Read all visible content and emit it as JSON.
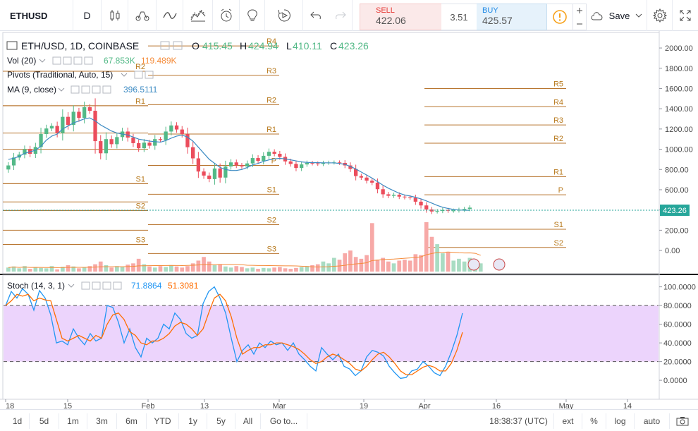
{
  "toolbar": {
    "symbol": "ETHUSD",
    "interval": "D",
    "sell_label": "SELL",
    "sell_price": "422.06",
    "spread": "3.51",
    "buy_label": "BUY",
    "buy_price": "425.57",
    "save_label": "Save",
    "icons": [
      "chevron-down-icon",
      "candles-icon",
      "compare-icon",
      "indicators-icon",
      "templates-icon",
      "alert-icon",
      "idea-icon",
      "replay-icon",
      "undo-icon",
      "redo-icon",
      "info-icon",
      "plus-icon",
      "minus-icon",
      "cloud-icon",
      "gear-icon",
      "fullscreen-icon"
    ]
  },
  "legend": {
    "title": "ETH/USD, 1D, COINBASE",
    "o_label": "O",
    "o_value": "415.45",
    "h_label": "H",
    "h_value": "424.94",
    "l_label": "L",
    "l_value": "410.11",
    "c_label": "C",
    "c_value": "423.26",
    "vol_label": "Vol (20)",
    "vol_value_1": "67.853K",
    "vol_value_2": "119.489K",
    "pivots_label": "Pivots (Traditional, Auto, 15)",
    "ma_label": "MA (9, close)",
    "ma_value": "396.5111",
    "stoch_label": "Stoch (14, 3, 1)",
    "stoch_k": "71.8864",
    "stoch_d": "51.3081"
  },
  "colors": {
    "up": "#53b987",
    "down": "#eb4d5c",
    "up_vol": "#a9dcc3",
    "down_vol": "#f7a9a7",
    "ma": "#3d8bc3",
    "vol_ma": "#f58b39",
    "pivot": "#b8752f",
    "stoch_k": "#2196f3",
    "stoch_d": "#ff6d00",
    "stoch_band": "#e5c6fb",
    "last_price_bg": "#26a69a"
  },
  "bottom": {
    "ranges": [
      "1d",
      "5d",
      "1m",
      "3m",
      "6m",
      "YTD",
      "1y",
      "5y",
      "All"
    ],
    "goto": "Go to...",
    "time": "18:38:37 (UTC)",
    "ext": "ext",
    "pct": "%",
    "log": "log",
    "auto": "auto"
  },
  "chart_data": [
    {
      "type": "candlestick",
      "title": "ETH/USD, 1D, COINBASE",
      "ylim": [
        -90,
        2070
      ],
      "y_ticks": [
        "2000.00",
        "1800.00",
        "1600.00",
        "1400.00",
        "1200.00",
        "1000.00",
        "800.00",
        "600.00",
        "400.00",
        "200.00",
        "0.00"
      ],
      "x_ticks": [
        "18",
        "15",
        "Feb",
        "13",
        "Mar",
        "19",
        "Apr",
        "16",
        "May",
        "14"
      ],
      "last_price": "423.26",
      "candles_close": [
        840,
        918,
        947,
        1000,
        955,
        1022,
        1150,
        1205,
        1230,
        1160,
        1320,
        1240,
        1370,
        1310,
        1415,
        1380,
        1080,
        960,
        1100,
        1050,
        1120,
        1175,
        1115,
        1060,
        1010,
        1065,
        1035,
        1100,
        1090,
        1175,
        1235,
        1195,
        1150,
        1020,
        910,
        780,
        740,
        705,
        810,
        720,
        830,
        870,
        842,
        830,
        860,
        913,
        885,
        935,
        975,
        955,
        925,
        880,
        855,
        815,
        850,
        865,
        860,
        855,
        865,
        868,
        870,
        865,
        840,
        805,
        735,
        720,
        690,
        670,
        605,
        555,
        540,
        550,
        532,
        525,
        520,
        482,
        445,
        405,
        385,
        390,
        400,
        392,
        395,
        402,
        410,
        423.26
      ],
      "candles_up": [
        true,
        true,
        true,
        true,
        false,
        true,
        true,
        true,
        true,
        false,
        true,
        false,
        true,
        false,
        true,
        false,
        false,
        false,
        true,
        false,
        true,
        true,
        false,
        false,
        false,
        true,
        false,
        true,
        false,
        true,
        true,
        false,
        false,
        false,
        false,
        false,
        false,
        false,
        true,
        false,
        true,
        true,
        false,
        false,
        true,
        true,
        false,
        true,
        true,
        false,
        false,
        false,
        false,
        false,
        true,
        true,
        false,
        false,
        true,
        true,
        true,
        false,
        false,
        false,
        false,
        false,
        false,
        false,
        false,
        false,
        false,
        true,
        false,
        false,
        false,
        false,
        false,
        false,
        false,
        true,
        true,
        false,
        true,
        true,
        true,
        true
      ],
      "ma": [
        900,
        910,
        930,
        960,
        975,
        990,
        1030,
        1090,
        1130,
        1150,
        1200,
        1230,
        1260,
        1280,
        1300,
        1310,
        1280,
        1240,
        1210,
        1180,
        1160,
        1150,
        1140,
        1120,
        1100,
        1090,
        1080,
        1075,
        1070,
        1085,
        1110,
        1130,
        1140,
        1120,
        1080,
        1020,
        960,
        900,
        860,
        820,
        800,
        790,
        790,
        800,
        820,
        845,
        860,
        880,
        895,
        905,
        910,
        905,
        895,
        885,
        875,
        870,
        868,
        867,
        866,
        866,
        865,
        860,
        850,
        830,
        805,
        775,
        745,
        715,
        680,
        645,
        615,
        590,
        565,
        548,
        538,
        525,
        510,
        490,
        468,
        445,
        427,
        415,
        405,
        400,
        398,
        396.5111
      ],
      "pivots": [
        {
          "label": "R2",
          "value": 1770
        },
        {
          "label": "R1",
          "value": 1430
        },
        {
          "label": "S1",
          "value": 660
        },
        {
          "label": "S2",
          "value": 395
        },
        {
          "label": "S3",
          "value": 60
        },
        {
          "label": "R4",
          "value": 2020
        },
        {
          "label": "R3",
          "value": 1730
        },
        {
          "label": "R2",
          "value": 1440
        },
        {
          "label": "R1",
          "value": 1150
        },
        {
          "label": "P",
          "value": 840
        },
        {
          "label": "S1",
          "value": 555
        },
        {
          "label": "S2",
          "value": 255
        },
        {
          "label": "S3",
          "value": -30
        },
        {
          "label": "R5",
          "value": 1600
        },
        {
          "label": "R4",
          "value": 1420
        },
        {
          "label": "R3",
          "value": 1240
        },
        {
          "label": "R2",
          "value": 1060
        },
        {
          "label": "R1",
          "value": 730
        },
        {
          "label": "P",
          "value": 550
        },
        {
          "label": "S1",
          "value": 210
        },
        {
          "label": "S2",
          "value": 30
        }
      ]
    },
    {
      "type": "bar",
      "title": "Vol (20)",
      "values": [
        22,
        28,
        18,
        30,
        15,
        25,
        20,
        18,
        30,
        12,
        26,
        35,
        28,
        18,
        22,
        30,
        40,
        55,
        35,
        22,
        30,
        25,
        38,
        45,
        70,
        40,
        28,
        22,
        30,
        25,
        35,
        28,
        22,
        30,
        45,
        60,
        80,
        55,
        35,
        40,
        28,
        22,
        30,
        25,
        18,
        22,
        15,
        20,
        18,
        22,
        25,
        18,
        15,
        20,
        25,
        30,
        35,
        40,
        55,
        45,
        75,
        65,
        100,
        115,
        80,
        70,
        90,
        265,
        65,
        75,
        55,
        45,
        60,
        65,
        60,
        95,
        90,
        270,
        190,
        150,
        100,
        105,
        60,
        70,
        55,
        75,
        50,
        45
      ]
    },
    {
      "type": "line",
      "title": "Stoch (14, 3, 1)",
      "ylim": [
        -12,
        105
      ],
      "y_ticks": [
        "100.0000",
        "80.0000",
        "60.0000",
        "40.0000",
        "20.0000",
        "0.0000"
      ],
      "series": [
        {
          "name": "%K",
          "values": [
            80,
            95,
            88,
            98,
            92,
            75,
            96,
            88,
            70,
            40,
            42,
            38,
            55,
            45,
            38,
            50,
            42,
            45,
            80,
            78,
            62,
            40,
            55,
            35,
            25,
            45,
            40,
            45,
            60,
            55,
            72,
            65,
            50,
            45,
            48,
            82,
            95,
            100,
            88,
            72,
            45,
            20,
            32,
            38,
            28,
            40,
            35,
            42,
            38,
            40,
            32,
            40,
            28,
            22,
            15,
            10,
            35,
            28,
            22,
            28,
            15,
            12,
            5,
            10,
            25,
            32,
            30,
            26,
            15,
            8,
            2,
            3,
            10,
            12,
            20,
            15,
            8,
            5,
            15,
            30,
            48,
            71.8864
          ]
        },
        {
          "name": "%D",
          "values": [
            80,
            85,
            92,
            90,
            92,
            85,
            88,
            86,
            85,
            65,
            45,
            42,
            45,
            48,
            45,
            42,
            48,
            45,
            60,
            70,
            72,
            65,
            52,
            48,
            40,
            38,
            42,
            42,
            45,
            50,
            58,
            62,
            60,
            55,
            48,
            55,
            72,
            88,
            92,
            85,
            68,
            45,
            28,
            32,
            35,
            35,
            38,
            38,
            40,
            40,
            38,
            36,
            33,
            28,
            22,
            18,
            20,
            25,
            28,
            26,
            22,
            18,
            12,
            10,
            15,
            22,
            28,
            30,
            25,
            18,
            10,
            6,
            6,
            10,
            14,
            16,
            14,
            10,
            10,
            18,
            32,
            51.3081
          ]
        }
      ]
    }
  ]
}
